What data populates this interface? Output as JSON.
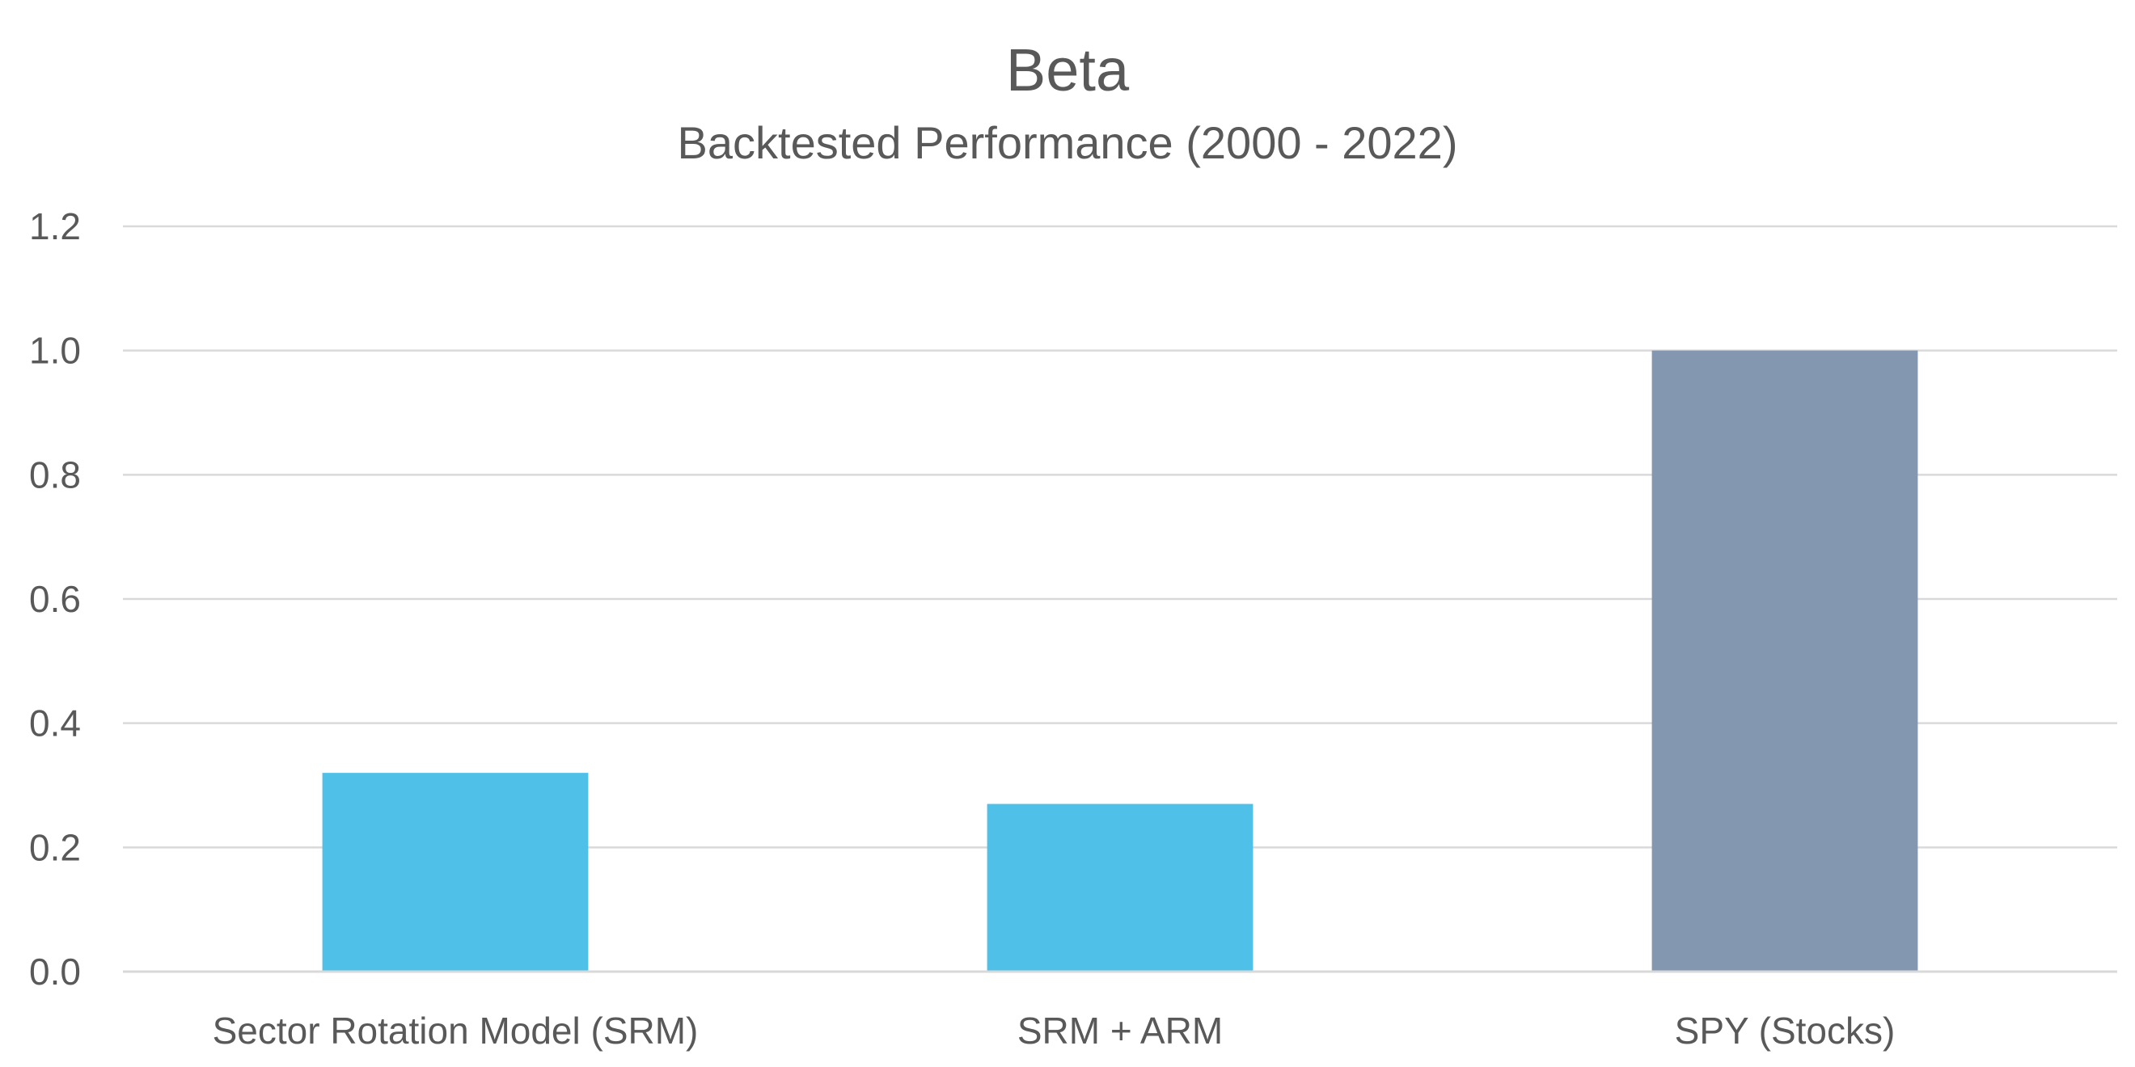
{
  "chart_data": {
    "type": "bar",
    "title": "Beta",
    "subtitle": "Backtested Performance (2000 - 2022)",
    "categories": [
      "Sector Rotation Model (SRM)",
      "SRM + ARM",
      "SPY (Stocks)"
    ],
    "values": [
      0.32,
      0.27,
      1.0
    ],
    "bar_colors": [
      "#4fc1e8",
      "#4fc1e8",
      "#8497b0"
    ],
    "ylim": [
      0,
      1.2
    ],
    "yticks": [
      "0.0",
      "0.2",
      "0.4",
      "0.6",
      "0.8",
      "1.0",
      "1.2"
    ],
    "xlabel": "",
    "ylabel": "",
    "grid": true,
    "legend": "none"
  }
}
